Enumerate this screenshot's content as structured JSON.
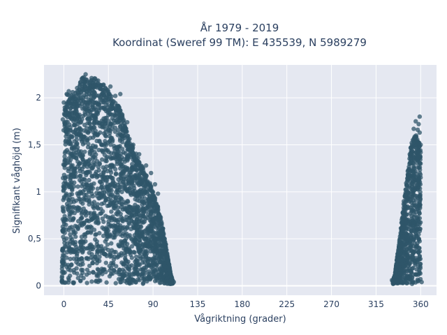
{
  "chart_data": {
    "type": "scatter",
    "title_line1": "År 1979 - 2019",
    "title_line2": "Koordinat (Sweref 99 TM): E 435539, N 5989279",
    "xlabel": "Vågriktning (grader)",
    "ylabel": "Signifikant våghöjd (m)",
    "xlim": [
      -20,
      376
    ],
    "ylim": [
      -0.1,
      2.35
    ],
    "xticks": [
      0,
      45,
      90,
      135,
      180,
      225,
      270,
      315,
      360
    ],
    "xtick_labels": [
      "0",
      "45",
      "90",
      "135",
      "180",
      "225",
      "270",
      "315",
      "360"
    ],
    "yticks": [
      0,
      0.5,
      1,
      1.5,
      2
    ],
    "ytick_labels": [
      "0",
      "0,5",
      "1",
      "1,5",
      "2"
    ],
    "grid": true,
    "plot_bg": "#e5e8f1",
    "marker_color": "#2f5569",
    "series": [
      {
        "envelope": [
          [
            -2,
            0.05
          ],
          [
            0,
            1.92
          ],
          [
            3,
            2.06
          ],
          [
            8,
            2.03
          ],
          [
            14,
            2.12
          ],
          [
            20,
            2.24
          ],
          [
            26,
            2.18
          ],
          [
            32,
            2.22
          ],
          [
            38,
            2.16
          ],
          [
            44,
            2.1
          ],
          [
            50,
            1.98
          ],
          [
            56,
            1.9
          ],
          [
            62,
            1.72
          ],
          [
            68,
            1.52
          ],
          [
            74,
            1.38
          ],
          [
            80,
            1.25
          ],
          [
            86,
            1.12
          ],
          [
            92,
            0.95
          ],
          [
            98,
            0.72
          ],
          [
            102,
            0.5
          ],
          [
            105,
            0.3
          ],
          [
            108,
            0.12
          ],
          [
            110,
            0.05
          ]
        ],
        "extra_points": [
          [
            0,
            1.95
          ],
          [
            5,
            2.07
          ],
          [
            9,
            2.06
          ],
          [
            16,
            2.03
          ],
          [
            18,
            2.2
          ],
          [
            22,
            2.25
          ],
          [
            28,
            2.21
          ],
          [
            33,
            2.18
          ],
          [
            40,
            2.14
          ],
          [
            47,
            2.12
          ],
          [
            52,
            2.02
          ],
          [
            57,
            2.04
          ],
          [
            59,
            1.82
          ],
          [
            64,
            1.74
          ],
          [
            70,
            1.5
          ],
          [
            76,
            1.4
          ],
          [
            83,
            1.28
          ],
          [
            88,
            1.2
          ],
          [
            92,
            1.08
          ],
          [
            95,
            0.98
          ],
          [
            103,
            0.44
          ],
          [
            106,
            0.2
          ],
          [
            111,
            0.04
          ],
          [
            -1,
            1.77
          ],
          [
            2,
            1.64
          ],
          [
            1,
            1.87
          ]
        ]
      },
      {
        "envelope": [
          [
            332,
            0.05
          ],
          [
            334,
            0.12
          ],
          [
            336,
            0.28
          ],
          [
            338,
            0.44
          ],
          [
            340,
            0.62
          ],
          [
            342,
            0.8
          ],
          [
            344,
            0.98
          ],
          [
            346,
            1.15
          ],
          [
            348,
            1.3
          ],
          [
            350,
            1.48
          ],
          [
            352,
            1.58
          ],
          [
            354,
            1.6
          ],
          [
            356,
            1.62
          ],
          [
            358,
            1.58
          ],
          [
            360,
            1.44
          ],
          [
            360,
            0.05
          ]
        ],
        "extra_points": [
          [
            331,
            0.06
          ],
          [
            335,
            0.18
          ],
          [
            339,
            0.5
          ],
          [
            343,
            0.9
          ],
          [
            347,
            1.22
          ],
          [
            349,
            1.4
          ],
          [
            351,
            1.52
          ],
          [
            353,
            1.67
          ],
          [
            355,
            1.75
          ],
          [
            357,
            1.66
          ],
          [
            358,
            1.72
          ],
          [
            359,
            1.8
          ],
          [
            359,
            1.63
          ],
          [
            360,
            1.5
          ],
          [
            361,
            0.04
          ]
        ]
      }
    ]
  }
}
